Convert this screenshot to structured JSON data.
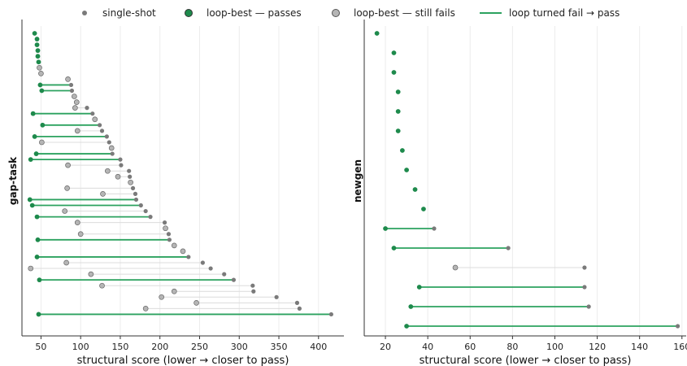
{
  "legend": {
    "items": [
      {
        "label": "single-shot",
        "marker": "dot-small",
        "color": "#7a7a7a"
      },
      {
        "label": "loop-best — passes",
        "marker": "dot",
        "color": "#1e8a4c"
      },
      {
        "label": "loop-best — still fails",
        "marker": "dot",
        "color": "#b5b5b5"
      },
      {
        "label": "loop turned fail → pass",
        "marker": "line",
        "color": "#2ca25f"
      }
    ]
  },
  "colors": {
    "single_shot": "#7a7a7a",
    "pass_dot": "#1e8a4c",
    "pass_line": "#2ca25f",
    "fail_dot": "#b5b5b5",
    "fail_line": "#dcdcdc",
    "grid": "#ececec",
    "axis": "#333333"
  },
  "chart_data": [
    {
      "type": "dumbbell",
      "panel_label": "gap-task",
      "xlabel": "structural score  (lower → closer to pass)",
      "xlim": [
        26,
        432
      ],
      "xticks": [
        50,
        100,
        150,
        200,
        250,
        300,
        350,
        400
      ],
      "grid": true,
      "rows": [
        {
          "single": 42,
          "loop": 42,
          "outcome": "pass"
        },
        {
          "single": 45,
          "loop": 45,
          "outcome": "pass"
        },
        {
          "single": 45,
          "loop": 45,
          "outcome": "pass"
        },
        {
          "single": 46,
          "loop": 46,
          "outcome": "pass"
        },
        {
          "single": 46,
          "loop": 46,
          "outcome": "pass"
        },
        {
          "single": 47,
          "loop": 47,
          "outcome": "pass"
        },
        {
          "single": 48,
          "loop": 48,
          "outcome": "fail"
        },
        {
          "single": 50,
          "loop": 50,
          "outcome": "fail"
        },
        {
          "single": 84,
          "loop": 84,
          "outcome": "fail"
        },
        {
          "single": 88,
          "loop": 49,
          "outcome": "pass"
        },
        {
          "single": 89,
          "loop": 51,
          "outcome": "pass"
        },
        {
          "single": 92,
          "loop": 92,
          "outcome": "fail"
        },
        {
          "single": 95,
          "loop": 95,
          "outcome": "fail"
        },
        {
          "single": 108,
          "loop": 93,
          "outcome": "fail"
        },
        {
          "single": 115,
          "loop": 40,
          "outcome": "pass"
        },
        {
          "single": 118,
          "loop": 118,
          "outcome": "fail"
        },
        {
          "single": 124,
          "loop": 52,
          "outcome": "pass"
        },
        {
          "single": 127,
          "loop": 96,
          "outcome": "fail"
        },
        {
          "single": 133,
          "loop": 42,
          "outcome": "pass"
        },
        {
          "single": 136,
          "loop": 51,
          "outcome": "fail"
        },
        {
          "single": 139,
          "loop": 139,
          "outcome": "fail"
        },
        {
          "single": 140,
          "loop": 44,
          "outcome": "pass"
        },
        {
          "single": 150,
          "loop": 37,
          "outcome": "pass"
        },
        {
          "single": 151,
          "loop": 84,
          "outcome": "fail"
        },
        {
          "single": 161,
          "loop": 134,
          "outcome": "fail"
        },
        {
          "single": 162,
          "loop": 147,
          "outcome": "fail"
        },
        {
          "single": 163,
          "loop": 163,
          "outcome": "fail"
        },
        {
          "single": 166,
          "loop": 83,
          "outcome": "fail"
        },
        {
          "single": 169,
          "loop": 128,
          "outcome": "fail"
        },
        {
          "single": 170,
          "loop": 36,
          "outcome": "pass"
        },
        {
          "single": 176,
          "loop": 39,
          "outcome": "pass"
        },
        {
          "single": 182,
          "loop": 80,
          "outcome": "fail"
        },
        {
          "single": 188,
          "loop": 45,
          "outcome": "pass"
        },
        {
          "single": 206,
          "loop": 96,
          "outcome": "fail"
        },
        {
          "single": 207,
          "loop": 207,
          "outcome": "fail"
        },
        {
          "single": 211,
          "loop": 100,
          "outcome": "fail"
        },
        {
          "single": 212,
          "loop": 46,
          "outcome": "pass"
        },
        {
          "single": 218,
          "loop": 218,
          "outcome": "fail"
        },
        {
          "single": 229,
          "loop": 229,
          "outcome": "fail"
        },
        {
          "single": 236,
          "loop": 45,
          "outcome": "pass"
        },
        {
          "single": 254,
          "loop": 82,
          "outcome": "fail"
        },
        {
          "single": 264,
          "loop": 37,
          "outcome": "fail"
        },
        {
          "single": 281,
          "loop": 113,
          "outcome": "fail"
        },
        {
          "single": 293,
          "loop": 48,
          "outcome": "pass"
        },
        {
          "single": 317,
          "loop": 127,
          "outcome": "fail"
        },
        {
          "single": 318,
          "loop": 218,
          "outcome": "fail"
        },
        {
          "single": 347,
          "loop": 202,
          "outcome": "fail"
        },
        {
          "single": 373,
          "loop": 246,
          "outcome": "fail"
        },
        {
          "single": 376,
          "loop": 182,
          "outcome": "fail"
        },
        {
          "single": 416,
          "loop": 47,
          "outcome": "pass"
        }
      ]
    },
    {
      "type": "dumbbell",
      "panel_label": "newgen",
      "xlabel": "structural score  (lower → closer to pass)",
      "xlim": [
        10,
        162
      ],
      "xticks": [
        20,
        40,
        60,
        80,
        100,
        120,
        140,
        160
      ],
      "grid": true,
      "rows": [
        {
          "single": 16,
          "loop": 16,
          "outcome": "pass"
        },
        {
          "single": 24,
          "loop": 24,
          "outcome": "pass"
        },
        {
          "single": 24,
          "loop": 24,
          "outcome": "pass"
        },
        {
          "single": 26,
          "loop": 26,
          "outcome": "pass"
        },
        {
          "single": 26,
          "loop": 26,
          "outcome": "pass"
        },
        {
          "single": 26,
          "loop": 26,
          "outcome": "pass"
        },
        {
          "single": 28,
          "loop": 28,
          "outcome": "pass"
        },
        {
          "single": 30,
          "loop": 30,
          "outcome": "pass"
        },
        {
          "single": 34,
          "loop": 34,
          "outcome": "pass"
        },
        {
          "single": 38,
          "loop": 38,
          "outcome": "pass"
        },
        {
          "single": 43,
          "loop": 20,
          "outcome": "pass"
        },
        {
          "single": 78,
          "loop": 24,
          "outcome": "pass"
        },
        {
          "single": 114,
          "loop": 53,
          "outcome": "fail"
        },
        {
          "single": 114,
          "loop": 36,
          "outcome": "pass"
        },
        {
          "single": 116,
          "loop": 32,
          "outcome": "pass"
        },
        {
          "single": 158,
          "loop": 30,
          "outcome": "pass"
        }
      ]
    }
  ]
}
